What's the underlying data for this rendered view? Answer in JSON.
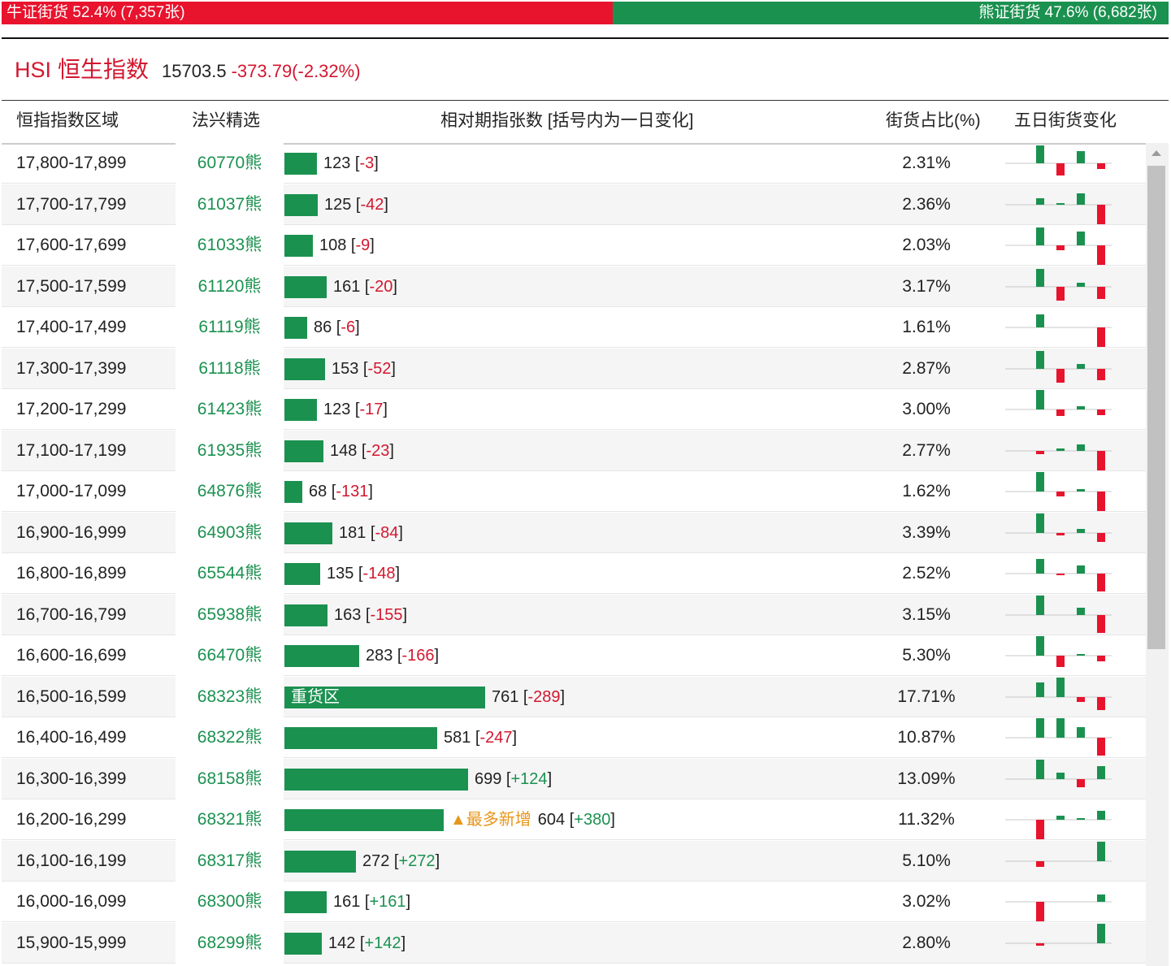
{
  "topbar": {
    "bull_label": "牛证街货 52.4% (7,357张)",
    "bear_label": "熊证街货 47.6% (6,682张)",
    "colors": {
      "bull": "#e8132d",
      "bear": "#1b9150"
    }
  },
  "title": {
    "code": "HSI",
    "name": "恒生指数",
    "price": "15703.5",
    "change": "-373.79(-2.32%)"
  },
  "table": {
    "headers": {
      "range": "恒指指数区域",
      "pick": "法兴精选",
      "relative": "相对期指张数 [括号内为一日变化]",
      "pct": "街货占比(%)",
      "five_day": "五日街货变化"
    },
    "rows": [
      {
        "range": "17,800-17,899",
        "pick": "60770熊",
        "qty": "123",
        "chg": "-3",
        "pct": "2.31%",
        "five": [
          22,
          -15,
          0,
          15,
          -7
        ]
      },
      {
        "range": "17,700-17,799",
        "pick": "61037熊",
        "qty": "125",
        "chg": "-42",
        "pct": "2.36%",
        "five": [
          8,
          2,
          0,
          14,
          -24
        ]
      },
      {
        "range": "17,600-17,699",
        "pick": "61033熊",
        "qty": "108",
        "chg": "-9",
        "pct": "2.03%",
        "five": [
          22,
          -6,
          0,
          17,
          -24
        ]
      },
      {
        "range": "17,500-17,599",
        "pick": "61120熊",
        "qty": "161",
        "chg": "-20",
        "pct": "3.17%",
        "five": [
          22,
          -17,
          0,
          5,
          -15
        ]
      },
      {
        "range": "17,400-17,499",
        "pick": "61119熊",
        "qty": "86",
        "chg": "-6",
        "pct": "1.61%",
        "five": [
          16,
          0,
          0,
          0,
          -24
        ]
      },
      {
        "range": "17,300-17,399",
        "pick": "61118熊",
        "qty": "153",
        "chg": "-52",
        "pct": "2.87%",
        "five": [
          22,
          -17,
          0,
          6,
          -14
        ]
      },
      {
        "range": "17,200-17,299",
        "pick": "61423熊",
        "qty": "123",
        "chg": "-17",
        "pct": "3.00%",
        "five": [
          24,
          -8,
          0,
          4,
          -7
        ]
      },
      {
        "range": "17,100-17,199",
        "pick": "61935熊",
        "qty": "148",
        "chg": "-23",
        "pct": "2.77%",
        "five": [
          -4,
          3,
          0,
          8,
          -24
        ]
      },
      {
        "range": "17,000-17,099",
        "pick": "64876熊",
        "qty": "68",
        "chg": "-131",
        "pct": "1.62%",
        "five": [
          24,
          -6,
          0,
          3,
          -24
        ]
      },
      {
        "range": "16,900-16,999",
        "pick": "64903熊",
        "qty": "181",
        "chg": "-84",
        "pct": "3.39%",
        "five": [
          24,
          -3,
          0,
          5,
          -11
        ]
      },
      {
        "range": "16,800-16,899",
        "pick": "65544熊",
        "qty": "135",
        "chg": "-148",
        "pct": "2.52%",
        "five": [
          18,
          -2,
          0,
          10,
          -22
        ]
      },
      {
        "range": "16,700-16,799",
        "pick": "65938熊",
        "qty": "163",
        "chg": "-155",
        "pct": "3.15%",
        "five": [
          24,
          0,
          0,
          9,
          -22
        ]
      },
      {
        "range": "16,600-16,699",
        "pick": "66470熊",
        "qty": "283",
        "chg": "-166",
        "pct": "5.30%",
        "five": [
          24,
          -14,
          0,
          2,
          -7
        ]
      },
      {
        "range": "16,500-16,599",
        "pick": "68323熊",
        "qty": "761",
        "chg": "-289",
        "pct": "17.71%",
        "tag": "重货区",
        "five": [
          18,
          24,
          0,
          -6,
          -16
        ]
      },
      {
        "range": "16,400-16,499",
        "pick": "68322熊",
        "qty": "581",
        "chg": "-247",
        "pct": "10.87%",
        "five": [
          24,
          24,
          0,
          13,
          -22
        ]
      },
      {
        "range": "16,300-16,399",
        "pick": "68158熊",
        "qty": "699",
        "chg": "+124",
        "pct": "13.09%",
        "five": [
          24,
          8,
          0,
          -10,
          16
        ]
      },
      {
        "range": "16,200-16,299",
        "pick": "68321熊",
        "qty": "604",
        "chg": "+380",
        "pct": "11.32%",
        "note": "▲最多新增",
        "five": [
          -24,
          5,
          0,
          2,
          11
        ]
      },
      {
        "range": "16,100-16,199",
        "pick": "68317熊",
        "qty": "272",
        "chg": "+272",
        "pct": "5.10%",
        "five": [
          -7,
          0,
          0,
          0,
          24
        ]
      },
      {
        "range": "16,000-16,099",
        "pick": "68300熊",
        "qty": "161",
        "chg": "+161",
        "pct": "3.02%",
        "five": [
          -24,
          0,
          0,
          0,
          9
        ]
      },
      {
        "range": "15,900-15,999",
        "pick": "68299熊",
        "qty": "142",
        "chg": "+142",
        "pct": "2.80%",
        "five": [
          -3,
          0,
          0,
          0,
          24
        ]
      }
    ]
  }
}
